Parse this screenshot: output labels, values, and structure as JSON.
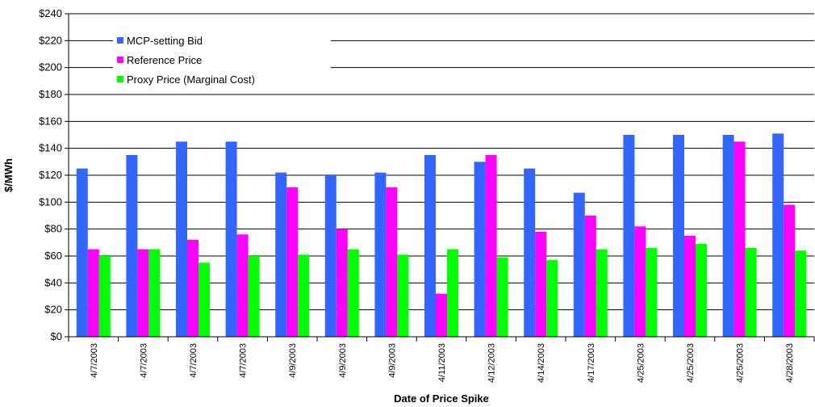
{
  "chart_data": {
    "type": "bar",
    "x_label": "Date of Price Spike",
    "y_label": "$/MWh",
    "categories": [
      "4/7/2003",
      "4/7/2003",
      "4/7/2003",
      "4/7/2003",
      "4/9/2003",
      "4/9/2003",
      "4/9/2003",
      "4/11/2003",
      "4/12/2003",
      "4/14/2003",
      "4/17/2003",
      "4/25/2003",
      "4/25/2003",
      "4/25/2003",
      "4/28/2003"
    ],
    "series": [
      {
        "name": "MCP-setting Bid",
        "color": "#3366ff",
        "values": [
          125,
          135,
          145,
          145,
          122,
          120,
          122,
          135,
          130,
          125,
          107,
          150,
          150,
          150,
          151
        ]
      },
      {
        "name": "Reference Price",
        "color": "#ff00ff",
        "values": [
          65,
          65,
          72,
          76,
          111,
          80,
          111,
          32,
          135,
          78,
          90,
          82,
          75,
          145,
          98
        ]
      },
      {
        "name": "Proxy Price (Marginal Cost)",
        "color": "#00ff00",
        "values": [
          60,
          65,
          55,
          60,
          61,
          65,
          61,
          65,
          59,
          57,
          65,
          66,
          69,
          66,
          64
        ]
      }
    ],
    "ylim": [
      0,
      240
    ],
    "yticks": [
      {
        "value": 0,
        "label": "$0"
      },
      {
        "value": 20,
        "label": "$20"
      },
      {
        "value": 40,
        "label": "$40"
      },
      {
        "value": 60,
        "label": "$60"
      },
      {
        "value": 80,
        "label": "$80"
      },
      {
        "value": 100,
        "label": "$100"
      },
      {
        "value": 120,
        "label": "$120"
      },
      {
        "value": 140,
        "label": "$140"
      },
      {
        "value": 160,
        "label": "$160"
      },
      {
        "value": 180,
        "label": "$180"
      },
      {
        "value": 200,
        "label": "$200"
      },
      {
        "value": 220,
        "label": "$220"
      },
      {
        "value": 240,
        "label": "$240"
      }
    ],
    "grid": true,
    "legend": "upper left"
  }
}
